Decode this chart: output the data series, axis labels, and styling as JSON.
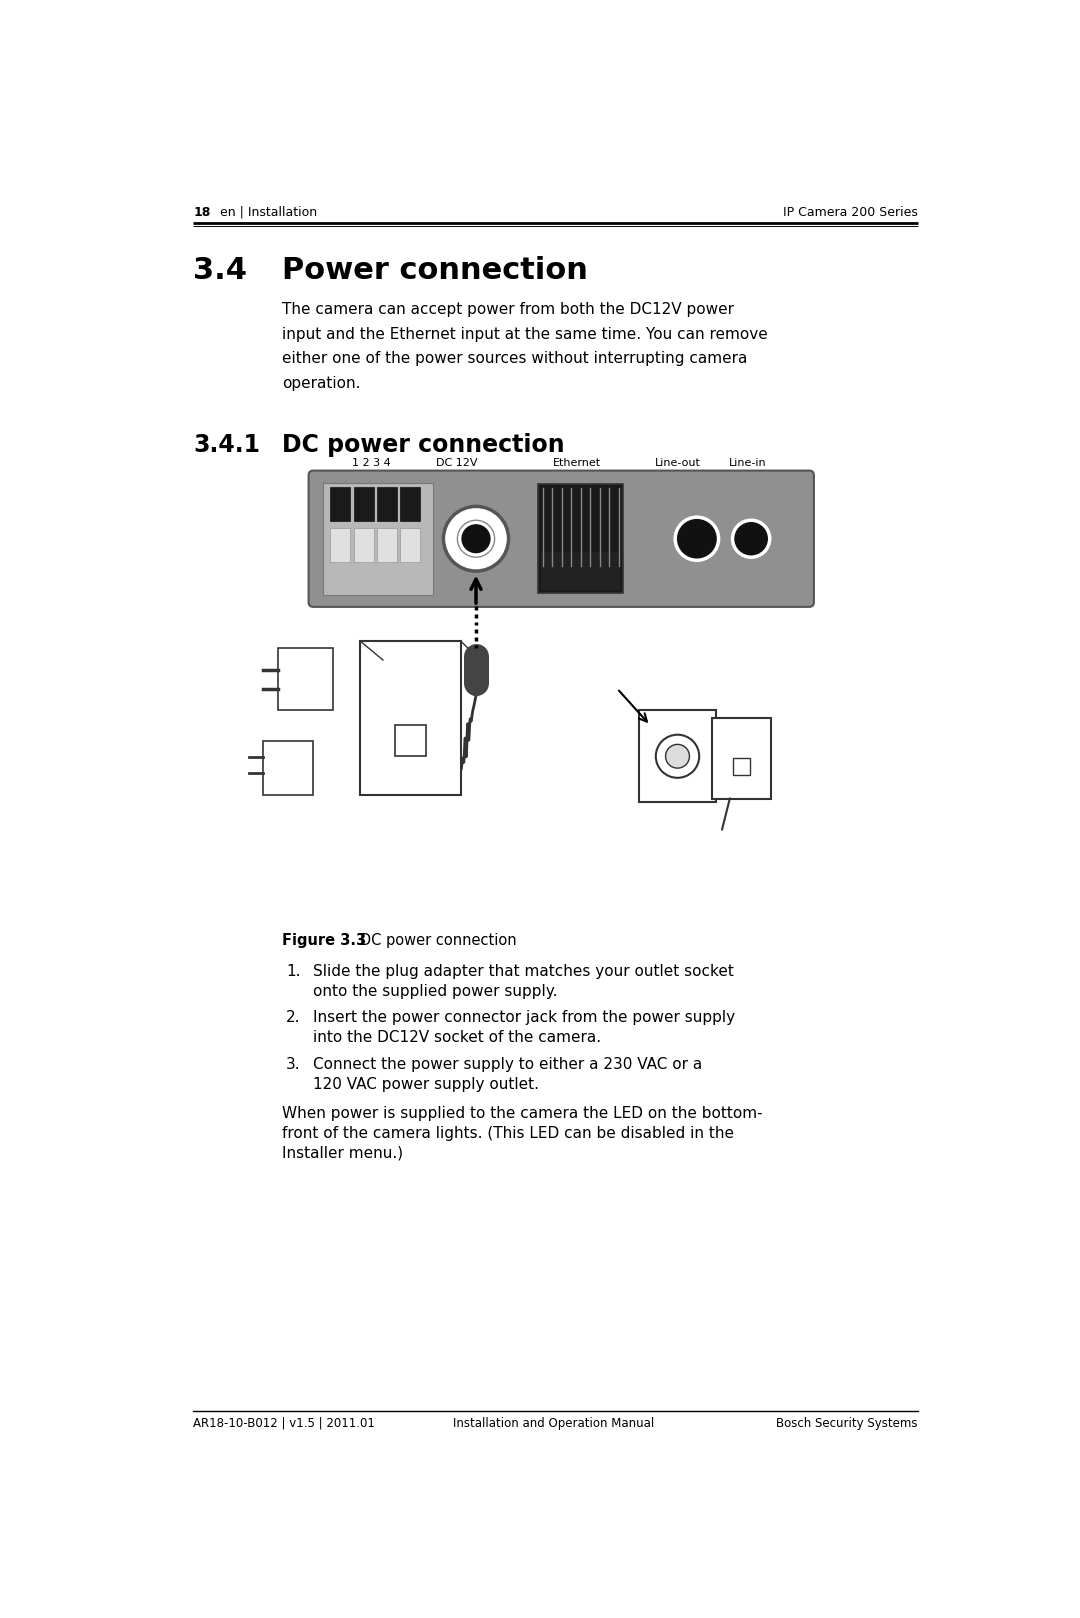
{
  "page_bg": "#ffffff",
  "header_left_bold": "18",
  "header_left_rest": "  en | Installation",
  "header_right": "IP Camera 200 Series",
  "footer_left": "AR18-10-B012 | v1.5 | 2011.01",
  "footer_center": "Installation and Operation Manual",
  "footer_right": "Bosch Security Systems",
  "section_number": "3.4",
  "section_title": "Power connection",
  "section_body_lines": [
    "The camera can accept power from both the DC12V power",
    "input and the Ethernet input at the same time. You can remove",
    "either one of the power sources without interrupting camera",
    "operation."
  ],
  "subsection_number": "3.4.1",
  "subsection_title": "DC power connection",
  "figure_caption_bold": "Figure 3.3",
  "figure_caption_rest": "   DC power connection",
  "steps": [
    [
      "Slide the plug adapter that matches your outlet socket",
      "onto the supplied power supply."
    ],
    [
      "Insert the power connector jack from the power supply",
      "into the DC12V socket of the camera."
    ],
    [
      "Connect the power supply to either a 230 VAC or a",
      "120 VAC power supply outlet."
    ]
  ],
  "closing_lines": [
    "When power is supplied to the camera the LED on the bottom-",
    "front of the camera lights. (This LED can be disabled in the",
    "Installer menu.)"
  ],
  "cam_label_texts": [
    "1 2 3 4",
    "DC 12V",
    "Ethernet",
    "Line-out",
    "Line-in"
  ],
  "cam_gray": "#888888",
  "cam_dark": "#555555",
  "cam_light": "#aaaaaa",
  "cam_panel_bg": "#b0b0b0"
}
